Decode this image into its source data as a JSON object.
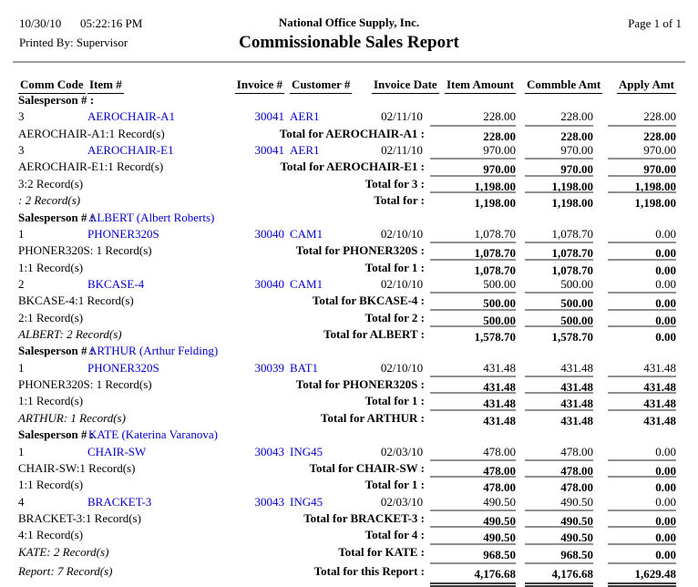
{
  "colors": {
    "link_blue": "#0000cc",
    "total_line_gray": "#8f8f8f",
    "divider_gray": "#9e9e9e"
  },
  "header": {
    "date": "10/30/10",
    "time": "05:22:16 PM",
    "printed_by": "Printed By: Supervisor",
    "company": "National Office Supply, Inc.",
    "title": "Commissionable Sales Report",
    "page": "Page 1 of 1"
  },
  "columns": {
    "comm_code": "Comm Code",
    "item": "Item #",
    "invoice": "Invoice #",
    "customer": "Customer #",
    "invoice_date": "Invoice Date",
    "item_amount": "Item Amount",
    "commble_amt": "Commble Amt",
    "apply_amt": "Apply Amt"
  },
  "rows": [
    {
      "type": "group",
      "label": "Salesperson # :",
      "name": ""
    },
    {
      "type": "data",
      "comm": "3",
      "item": "AEROCHAIR-A1",
      "inv": "30041",
      "cust": "AER1",
      "date": "02/11/10",
      "a1": "228.00",
      "a2": "228.00",
      "a3": "228.00"
    },
    {
      "type": "total",
      "left": "AEROCHAIR-A1:1 Record(s)",
      "label": "Total for AEROCHAIR-A1 :",
      "a1": "228.00",
      "a2": "228.00",
      "a3": "228.00"
    },
    {
      "type": "data",
      "comm": "3",
      "item": "AEROCHAIR-E1",
      "inv": "30041",
      "cust": "AER1",
      "date": "02/11/10",
      "a1": "970.00",
      "a2": "970.00",
      "a3": "970.00"
    },
    {
      "type": "total",
      "left": "AEROCHAIR-E1:1 Record(s)",
      "label": "Total for AEROCHAIR-E1 :",
      "a1": "970.00",
      "a2": "970.00",
      "a3": "970.00"
    },
    {
      "type": "total",
      "left": "3:2 Record(s)",
      "label": "Total for 3 :",
      "a1": "1,198.00",
      "a2": "1,198.00",
      "a3": "1,198.00"
    },
    {
      "type": "total-italic",
      "left": ": 2 Record(s)",
      "label": "Total for :",
      "a1": "1,198.00",
      "a2": "1,198.00",
      "a3": "1,198.00"
    },
    {
      "type": "group",
      "label": "Salesperson # :",
      "name": "ALBERT (Albert Roberts)"
    },
    {
      "type": "data",
      "comm": "1",
      "item": "PHONER320S",
      "inv": "30040",
      "cust": "CAM1",
      "date": "02/10/10",
      "a1": "1,078.70",
      "a2": "1,078.70",
      "a3": "0.00"
    },
    {
      "type": "total",
      "left": "PHONER320S: 1 Record(s)",
      "label": "Total for PHONER320S :",
      "a1": "1,078.70",
      "a2": "1,078.70",
      "a3": "0.00"
    },
    {
      "type": "total",
      "left": "1:1 Record(s)",
      "label": "Total for 1 :",
      "a1": "1,078.70",
      "a2": "1,078.70",
      "a3": "0.00"
    },
    {
      "type": "data",
      "comm": "2",
      "item": "BKCASE-4",
      "inv": "30040",
      "cust": "CAM1",
      "date": "02/10/10",
      "a1": "500.00",
      "a2": "500.00",
      "a3": "0.00"
    },
    {
      "type": "total",
      "left": "BKCASE-4:1 Record(s)",
      "label": "Total for BKCASE-4 :",
      "a1": "500.00",
      "a2": "500.00",
      "a3": "0.00"
    },
    {
      "type": "total",
      "left": "2:1 Record(s)",
      "label": "Total for 2 :",
      "a1": "500.00",
      "a2": "500.00",
      "a3": "0.00"
    },
    {
      "type": "total-italic",
      "left": "ALBERT: 2 Record(s)",
      "label": "Total for ALBERT :",
      "a1": "1,578.70",
      "a2": "1,578.70",
      "a3": "0.00"
    },
    {
      "type": "group",
      "label": "Salesperson # :",
      "name": "ARTHUR (Arthur Felding)"
    },
    {
      "type": "data",
      "comm": "1",
      "item": "PHONER320S",
      "inv": "30039",
      "cust": "BAT1",
      "date": "02/10/10",
      "a1": "431.48",
      "a2": "431.48",
      "a3": "431.48"
    },
    {
      "type": "total",
      "left": "PHONER320S: 1 Record(s)",
      "label": "Total for PHONER320S :",
      "a1": "431.48",
      "a2": "431.48",
      "a3": "431.48"
    },
    {
      "type": "total",
      "left": "1:1 Record(s)",
      "label": "Total for 1 :",
      "a1": "431.48",
      "a2": "431.48",
      "a3": "431.48"
    },
    {
      "type": "total-italic",
      "left": "ARTHUR: 1 Record(s)",
      "label": "Total for ARTHUR :",
      "a1": "431.48",
      "a2": "431.48",
      "a3": "431.48"
    },
    {
      "type": "group",
      "label": "Salesperson # :",
      "name": "KATE (Katerina Varanova)"
    },
    {
      "type": "data",
      "comm": "1",
      "item": "CHAIR-SW",
      "inv": "30043",
      "cust": "ING45",
      "date": "02/03/10",
      "a1": "478.00",
      "a2": "478.00",
      "a3": "0.00"
    },
    {
      "type": "total",
      "left": "CHAIR-SW:1 Record(s)",
      "label": "Total for CHAIR-SW :",
      "a1": "478.00",
      "a2": "478.00",
      "a3": "0.00"
    },
    {
      "type": "total",
      "left": "1:1 Record(s)",
      "label": "Total for 1 :",
      "a1": "478.00",
      "a2": "478.00",
      "a3": "0.00"
    },
    {
      "type": "data",
      "comm": "4",
      "item": "BRACKET-3",
      "inv": "30043",
      "cust": "ING45",
      "date": "02/03/10",
      "a1": "490.50",
      "a2": "490.50",
      "a3": "0.00"
    },
    {
      "type": "total",
      "left": "BRACKET-3:1 Record(s)",
      "label": "Total for BRACKET-3 :",
      "a1": "490.50",
      "a2": "490.50",
      "a3": "0.00"
    },
    {
      "type": "total",
      "left": "4:1 Record(s)",
      "label": "Total for 4 :",
      "a1": "490.50",
      "a2": "490.50",
      "a3": "0.00"
    },
    {
      "type": "total-italic",
      "left": "KATE: 2 Record(s)",
      "label": "Total for KATE :",
      "a1": "968.50",
      "a2": "968.50",
      "a3": "0.00"
    },
    {
      "type": "report-total",
      "left": "Report: 7 Record(s)",
      "label": "Total for this Report :",
      "a1": "4,176.68",
      "a2": "4,176.68",
      "a3": "1,629.48"
    }
  ]
}
